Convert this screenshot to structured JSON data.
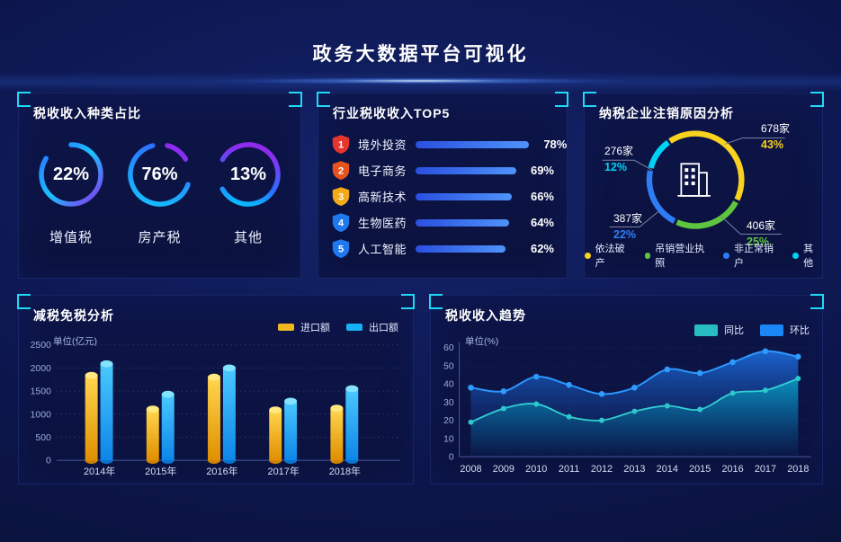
{
  "header": {
    "title": "政务大数据平台可视化"
  },
  "chart_data": [
    {
      "type": "gauge",
      "title": "税收收入种类占比",
      "items": [
        {
          "label": "增值税",
          "percent": 22,
          "percent_label": "22%"
        },
        {
          "label": "房产税",
          "percent": 76,
          "percent_label": "76%"
        },
        {
          "label": "其他",
          "percent": 13,
          "percent_label": "13%"
        }
      ]
    },
    {
      "type": "bar",
      "orientation": "horizontal",
      "title": "行业税收收入TOP5",
      "items": [
        {
          "rank": "1",
          "label": "境外投资",
          "value": 78,
          "value_label": "78%",
          "badge_color": "#e5352c"
        },
        {
          "rank": "2",
          "label": "电子商务",
          "value": 69,
          "value_label": "69%",
          "badge_color": "#e7531f"
        },
        {
          "rank": "3",
          "label": "高新技术",
          "value": 66,
          "value_label": "66%",
          "badge_color": "#f3a918"
        },
        {
          "rank": "4",
          "label": "生物医药",
          "value": 64,
          "value_label": "64%",
          "badge_color": "#1e79ef"
        },
        {
          "rank": "5",
          "label": "人工智能",
          "value": 62,
          "value_label": "62%",
          "badge_color": "#1e79ef"
        }
      ],
      "bar_gradient": [
        "#2a4fe0",
        "#4f93fa"
      ]
    },
    {
      "type": "pie",
      "title": "纳税企业注销原因分析",
      "items": [
        {
          "label": "依法破产",
          "count": "678家",
          "percent_label": "43%",
          "value": 43,
          "color": "#f7d21e"
        },
        {
          "label": "吊销营业执照",
          "count": "406家",
          "percent_label": "25%",
          "value": 25,
          "color": "#5fc53e"
        },
        {
          "label": "非正常销户",
          "count": "387家",
          "percent_label": "22%",
          "value": 22,
          "color": "#2e7df5"
        },
        {
          "label": "其他",
          "count": "276家",
          "percent_label": "12%",
          "value": 12,
          "color": "#00d2f5"
        }
      ],
      "legend_position": "bottom"
    },
    {
      "type": "bar",
      "title": "减税免税分析",
      "unit": "单位(亿元)",
      "categories": [
        "2014年",
        "2015年",
        "2016年",
        "2017年",
        "2018年"
      ],
      "series": [
        {
          "name": "进口额",
          "color": "#f0b81e",
          "values": [
            1840,
            1110,
            1800,
            1090,
            1130
          ]
        },
        {
          "name": "出口额",
          "color": "#17b0f0",
          "values": [
            2090,
            1430,
            2000,
            1280,
            1550
          ]
        }
      ],
      "ylim": [
        0,
        2500
      ],
      "yticks": [
        0,
        500,
        1000,
        1500,
        2000,
        2500
      ],
      "grid": "dotted-horizontal",
      "legend_position": "top-right"
    },
    {
      "type": "area",
      "title": "税收收入趋势",
      "unit": "单位(%)",
      "x": [
        "2008",
        "2009",
        "2010",
        "2011",
        "2012",
        "2013",
        "2014",
        "2015",
        "2016",
        "2017",
        "2018"
      ],
      "series": [
        {
          "name": "同比",
          "color": "#28bcc2",
          "values": [
            19,
            26.5,
            29,
            22,
            20,
            25,
            28,
            26,
            35,
            36.5,
            43
          ]
        },
        {
          "name": "环比",
          "color": "#1b86f5",
          "values": [
            38,
            36,
            44,
            39.5,
            34.5,
            38,
            48,
            46,
            52,
            58,
            55
          ]
        }
      ],
      "ylim": [
        0,
        60
      ],
      "yticks": [
        0,
        10,
        20,
        30,
        40,
        50,
        60
      ],
      "grid": "dotted",
      "legend_position": "top-right"
    }
  ]
}
